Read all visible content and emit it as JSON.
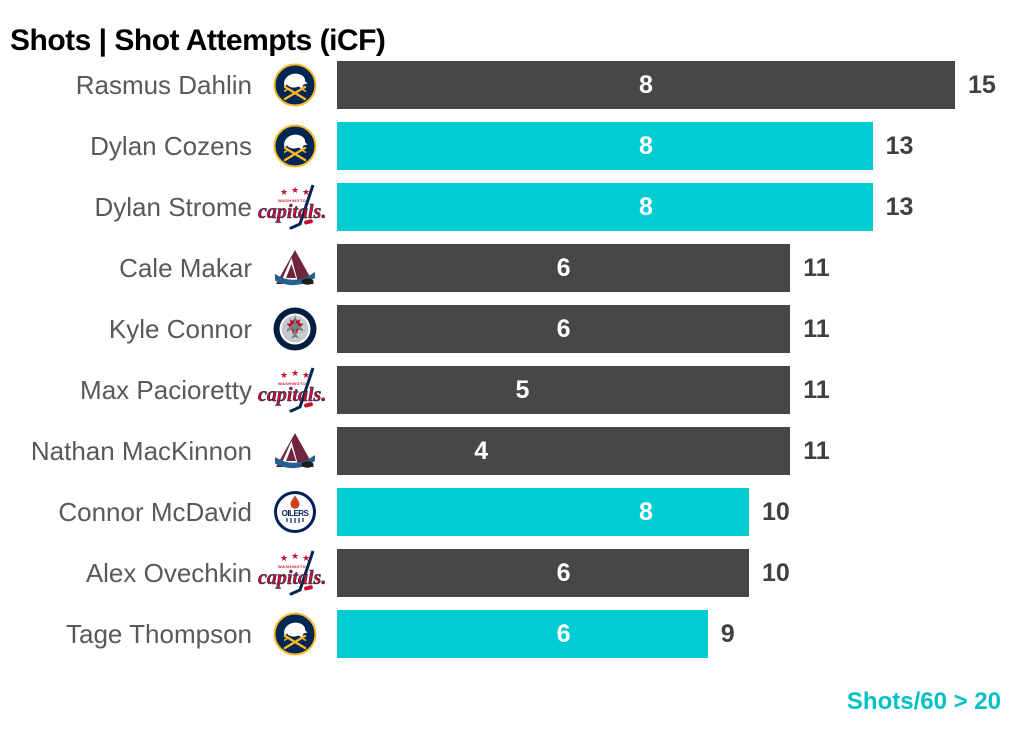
{
  "title": "Shots | Shot Attempts (iCF)",
  "note": {
    "text": "Shots/60 > 20",
    "color": "#00C1C7"
  },
  "colors": {
    "bar_default": "#474747",
    "bar_highlight": "#00CCD2",
    "name_text": "#595959",
    "value_text": "#404040",
    "inner_label_text": "#FFFFFF",
    "title_text": "#000000"
  },
  "chart_data": {
    "type": "bar",
    "orientation": "horizontal",
    "title": "Shots | Shot Attempts (iCF)",
    "x_range": [
      0,
      15
    ],
    "grid": false,
    "legend_note": "Teal bars = Shots/60 > 20; white number inside bar = Shots; number at bar end = Shot Attempts (iCF)",
    "categories": [
      "Rasmus Dahlin",
      "Dylan Cozens",
      "Dylan Strome",
      "Cale Makar",
      "Kyle Connor",
      "Max Pacioretty",
      "Nathan MacKinnon",
      "Connor McDavid",
      "Alex Ovechkin",
      "Tage Thompson"
    ],
    "series": [
      {
        "name": "Shots",
        "values": [
          8,
          8,
          8,
          6,
          6,
          5,
          4,
          8,
          6,
          6
        ]
      },
      {
        "name": "Shot Attempts (iCF)",
        "values": [
          15,
          13,
          13,
          11,
          11,
          11,
          11,
          10,
          10,
          9
        ]
      }
    ],
    "players": [
      {
        "name": "Rasmus Dahlin",
        "team": "Buffalo Sabres",
        "logo": "sabres-logo",
        "shots": 8,
        "attempts": 15,
        "highlighted": false
      },
      {
        "name": "Dylan Cozens",
        "team": "Buffalo Sabres",
        "logo": "sabres-logo",
        "shots": 8,
        "attempts": 13,
        "highlighted": true
      },
      {
        "name": "Dylan Strome",
        "team": "Washington Capitals",
        "logo": "capitals-logo",
        "shots": 8,
        "attempts": 13,
        "highlighted": true
      },
      {
        "name": "Cale Makar",
        "team": "Colorado Avalanche",
        "logo": "avalanche-logo",
        "shots": 6,
        "attempts": 11,
        "highlighted": false
      },
      {
        "name": "Kyle Connor",
        "team": "Winnipeg Jets",
        "logo": "jets-logo",
        "shots": 6,
        "attempts": 11,
        "highlighted": false
      },
      {
        "name": "Max Pacioretty",
        "team": "Washington Capitals",
        "logo": "capitals-logo",
        "shots": 5,
        "attempts": 11,
        "highlighted": false
      },
      {
        "name": "Nathan MacKinnon",
        "team": "Colorado Avalanche",
        "logo": "avalanche-logo",
        "shots": 4,
        "attempts": 11,
        "highlighted": false
      },
      {
        "name": "Connor McDavid",
        "team": "Edmonton Oilers",
        "logo": "oilers-logo",
        "shots": 8,
        "attempts": 10,
        "highlighted": true
      },
      {
        "name": "Alex Ovechkin",
        "team": "Washington Capitals",
        "logo": "capitals-logo",
        "shots": 6,
        "attempts": 10,
        "highlighted": false
      },
      {
        "name": "Tage Thompson",
        "team": "Buffalo Sabres",
        "logo": "sabres-logo",
        "shots": 6,
        "attempts": 9,
        "highlighted": true
      }
    ]
  }
}
